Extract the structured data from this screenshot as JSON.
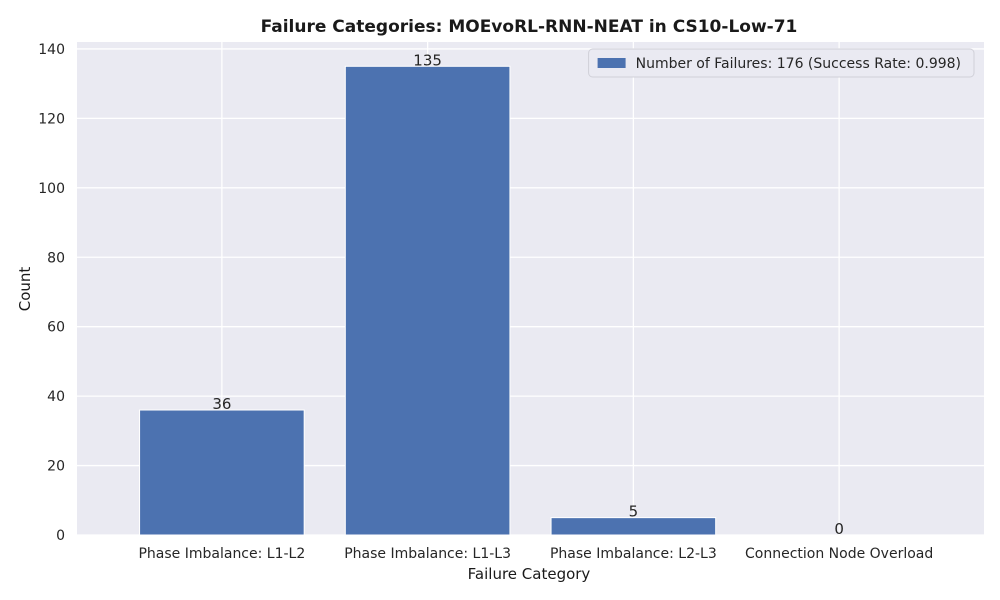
{
  "chart_data": {
    "type": "bar",
    "title": "Failure Categories: MOEvoRL-RNN-NEAT in CS10-Low-71",
    "xlabel": "Failure Category",
    "ylabel": "Count",
    "categories": [
      "Phase Imbalance: L1-L2",
      "Phase Imbalance: L1-L3",
      "Phase Imbalance: L2-L3",
      "Connection Node Overload"
    ],
    "series": [
      {
        "name": "Number of Failures: 176 (Success Rate: 0.998)",
        "values": [
          36,
          135,
          5,
          0
        ],
        "color": "#4c72b0"
      }
    ],
    "data_labels": [
      "36",
      "135",
      "5",
      "0"
    ],
    "ylim": [
      0,
      142
    ],
    "yticks": [
      0,
      20,
      40,
      60,
      80,
      100,
      120,
      140
    ],
    "grid": true,
    "legend_position": "top-right",
    "background_color": "#eaeaf2",
    "grid_color": "#ffffff"
  }
}
